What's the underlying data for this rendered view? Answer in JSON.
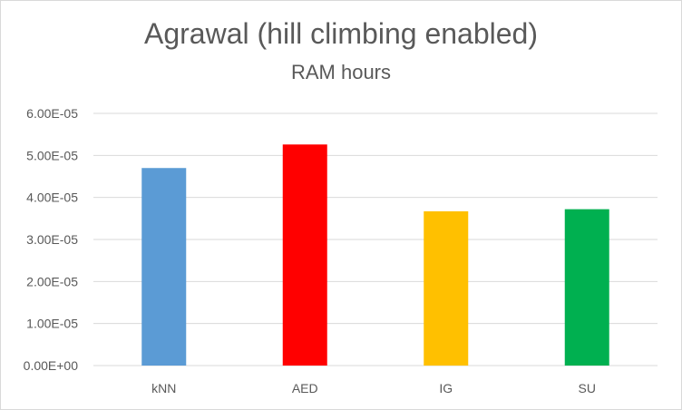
{
  "chart_data": {
    "type": "bar",
    "title": "Agrawal (hill climbing enabled)",
    "subtitle": "RAM hours",
    "categories": [
      "kNN",
      "AED",
      "IG",
      "SU"
    ],
    "values": [
      4.7e-05,
      5.26e-05,
      3.67e-05,
      3.72e-05
    ],
    "colors": [
      "#5b9bd5",
      "#ff0000",
      "#ffc000",
      "#00b050"
    ],
    "yticks": [
      "0.00E+00",
      "1.00E-05",
      "2.00E-05",
      "3.00E-05",
      "4.00E-05",
      "5.00E-05",
      "6.00E-05"
    ],
    "ylim": [
      0,
      6e-05
    ],
    "xlabel": "",
    "ylabel": "",
    "grid": true,
    "legend": "none"
  }
}
